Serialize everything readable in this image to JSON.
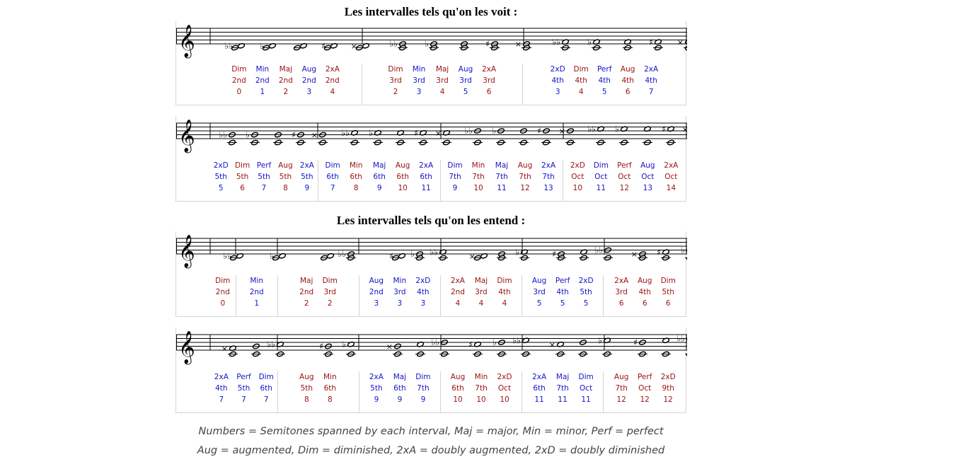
{
  "title_seen": "Les intervalles tels qu'on les voit :",
  "title_heard": "Les intervalles tels qu'on les entend :",
  "legend": [
    "Numbers = Semitones spanned by each interval, Maj = major, Min = minor, Perf = perfect",
    "Aug = augmented, Dim = diminished, 2xA = doubly augmented, 2xD = doubly diminished"
  ],
  "colors": {
    "red": "#9b1010",
    "blue": "#1414c8"
  },
  "staves": [
    {
      "groups": [
        [
          [
            "Dim",
            "2nd",
            "0",
            "red",
            "bb"
          ],
          [
            "Min",
            "2nd",
            "1",
            "blue",
            "b"
          ],
          [
            "Maj",
            "2nd",
            "2",
            "red",
            ""
          ],
          [
            "Aug",
            "2nd",
            "3",
            "blue",
            "#"
          ],
          [
            "2xA",
            "2nd",
            "4",
            "red",
            "x"
          ]
        ],
        [
          [
            "Dim",
            "3rd",
            "2",
            "red",
            "bb"
          ],
          [
            "Min",
            "3rd",
            "3",
            "blue",
            "b"
          ],
          [
            "Maj",
            "3rd",
            "4",
            "red",
            ""
          ],
          [
            "Aug",
            "3rd",
            "5",
            "blue",
            "#"
          ],
          [
            "2xA",
            "3rd",
            "6",
            "red",
            "x"
          ]
        ],
        [
          [
            "2xD",
            "4th",
            "3",
            "blue",
            "bb"
          ],
          [
            "Dim",
            "4th",
            "4",
            "red",
            "b"
          ],
          [
            "Perf",
            "4th",
            "5",
            "blue",
            ""
          ],
          [
            "Aug",
            "4th",
            "6",
            "red",
            "#"
          ],
          [
            "2xA",
            "4th",
            "7",
            "blue",
            "x"
          ]
        ]
      ]
    },
    {
      "groups": [
        [
          [
            "2xD",
            "5th",
            "5",
            "blue",
            "bb"
          ],
          [
            "Dim",
            "5th",
            "6",
            "red",
            "b"
          ],
          [
            "Perf",
            "5th",
            "7",
            "blue",
            ""
          ],
          [
            "Aug",
            "5th",
            "8",
            "red",
            "#"
          ],
          [
            "2xA",
            "5th",
            "9",
            "blue",
            "x"
          ]
        ],
        [
          [
            "Dim",
            "6th",
            "7",
            "blue",
            "bb"
          ],
          [
            "Min",
            "6th",
            "8",
            "red",
            "b"
          ],
          [
            "Maj",
            "6th",
            "9",
            "blue",
            ""
          ],
          [
            "Aug",
            "6th",
            "10",
            "red",
            "#"
          ],
          [
            "2xA",
            "6th",
            "11",
            "blue",
            "x"
          ]
        ],
        [
          [
            "Dim",
            "7th",
            "9",
            "blue",
            "bb"
          ],
          [
            "Min",
            "7th",
            "10",
            "red",
            "b"
          ],
          [
            "Maj",
            "7th",
            "11",
            "blue",
            ""
          ],
          [
            "Aug",
            "7th",
            "12",
            "red",
            "#"
          ],
          [
            "2xA",
            "7th",
            "13",
            "blue",
            "x"
          ]
        ],
        [
          [
            "2xD",
            "Oct",
            "10",
            "red",
            "bb"
          ],
          [
            "Dim",
            "Oct",
            "11",
            "blue",
            "b"
          ],
          [
            "Perf",
            "Oct",
            "12",
            "red",
            ""
          ],
          [
            "Aug",
            "Oct",
            "13",
            "blue",
            "#"
          ],
          [
            "2xA",
            "Oct",
            "14",
            "red",
            "x"
          ]
        ]
      ]
    },
    {
      "groups": [
        [
          [
            "Dim",
            "2nd",
            "0",
            "red",
            "bb"
          ]
        ],
        [
          [
            "Min",
            "2nd",
            "1",
            "blue",
            "b"
          ]
        ],
        [
          [
            "Maj",
            "2nd",
            "2",
            "red",
            ""
          ],
          [
            "Dim",
            "3rd",
            "2",
            "red",
            "bb"
          ]
        ],
        [
          [
            "Aug",
            "2nd",
            "3",
            "blue",
            "#"
          ],
          [
            "Min",
            "3rd",
            "3",
            "blue",
            "b"
          ],
          [
            "2xD",
            "4th",
            "3",
            "blue",
            "bb"
          ]
        ],
        [
          [
            "2xA",
            "2nd",
            "4",
            "red",
            "x"
          ],
          [
            "Maj",
            "3rd",
            "4",
            "red",
            ""
          ],
          [
            "Dim",
            "4th",
            "4",
            "red",
            "b"
          ]
        ],
        [
          [
            "Aug",
            "3rd",
            "5",
            "blue",
            "#"
          ],
          [
            "Perf",
            "4th",
            "5",
            "blue",
            ""
          ],
          [
            "2xD",
            "5th",
            "5",
            "blue",
            "bb"
          ]
        ],
        [
          [
            "2xA",
            "3rd",
            "6",
            "red",
            "x"
          ],
          [
            "Aug",
            "4th",
            "6",
            "red",
            "#"
          ],
          [
            "Dim",
            "5th",
            "6",
            "red",
            "b"
          ]
        ]
      ]
    },
    {
      "groups": [
        [
          [
            "2xA",
            "4th",
            "7",
            "blue",
            "x"
          ],
          [
            "Perf",
            "5th",
            "7",
            "blue",
            ""
          ],
          [
            "Dim",
            "6th",
            "7",
            "blue",
            "bb"
          ]
        ],
        [
          [
            "Aug",
            "5th",
            "8",
            "red",
            "#"
          ],
          [
            "Min",
            "6th",
            "8",
            "red",
            "b"
          ]
        ],
        [
          [
            "2xA",
            "5th",
            "9",
            "blue",
            "x"
          ],
          [
            "Maj",
            "6th",
            "9",
            "blue",
            ""
          ],
          [
            "Dim",
            "7th",
            "9",
            "blue",
            "bb"
          ]
        ],
        [
          [
            "Aug",
            "6th",
            "10",
            "red",
            "#"
          ],
          [
            "Min",
            "7th",
            "10",
            "red",
            "b"
          ],
          [
            "2xD",
            "Oct",
            "10",
            "red",
            "bb"
          ]
        ],
        [
          [
            "2xA",
            "6th",
            "11",
            "blue",
            "x"
          ],
          [
            "Maj",
            "7th",
            "11",
            "blue",
            ""
          ],
          [
            "Dim",
            "Oct",
            "11",
            "blue",
            "b"
          ]
        ],
        [
          [
            "Aug",
            "7th",
            "12",
            "red",
            "#"
          ],
          [
            "Perf",
            "Oct",
            "12",
            "red",
            ""
          ],
          [
            "2xD",
            "9th",
            "12",
            "red",
            "bb"
          ]
        ]
      ]
    }
  ]
}
